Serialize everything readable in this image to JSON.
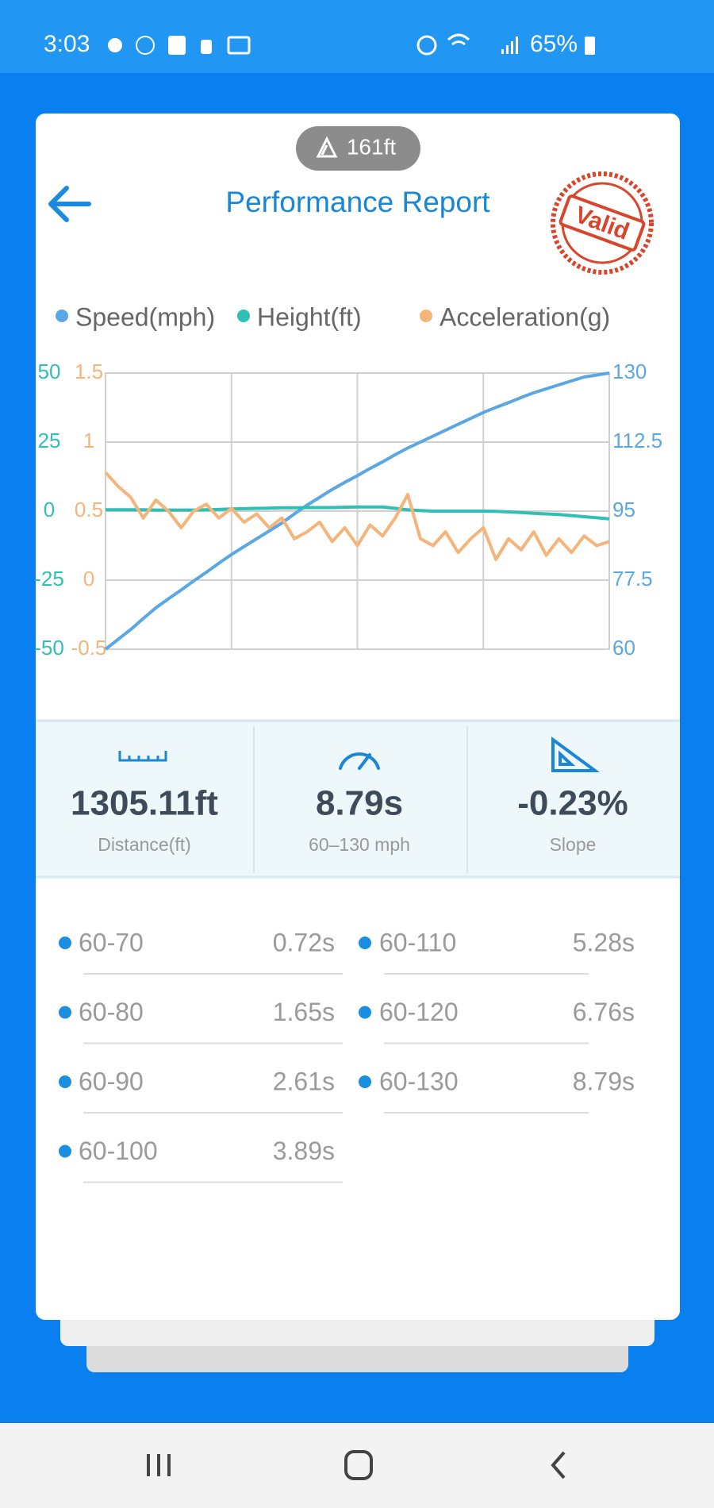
{
  "status_bar": {
    "time": "3:03",
    "battery": "65%"
  },
  "header": {
    "elevation": "161ft",
    "title": "Performance Report",
    "stamp": "Valid"
  },
  "chart_data": {
    "type": "line",
    "series": [
      {
        "name": "Speed(mph)",
        "color": "#5ba7e3",
        "axis": "y2",
        "values": [
          60,
          62.5,
          65,
          67.8,
          70.5,
          72.8,
          75,
          77.3,
          79.5,
          81.8,
          84,
          86,
          88,
          90,
          92,
          94.3,
          96.5,
          98.5,
          100.5,
          102.3,
          104,
          105.8,
          107.5,
          109.3,
          111,
          112.5,
          114,
          115.5,
          117,
          118.5,
          120,
          121.3,
          122.5,
          123.8,
          125,
          126,
          127,
          128,
          129,
          129.5,
          130
        ]
      },
      {
        "name": "Height(ft)",
        "color": "#2fbfb5",
        "axis": "y",
        "values": [
          0.5,
          0.5,
          0.5,
          0.5,
          0.4,
          0.4,
          0.4,
          0.4,
          0.5,
          0.6,
          0.8,
          0.9,
          1,
          1.1,
          1.2,
          1.2,
          1.3,
          1.3,
          1.3,
          1.4,
          1.5,
          1.5,
          1.5,
          1,
          0.5,
          0.2,
          0,
          0,
          0,
          0,
          0,
          -0.1,
          -0.3,
          -0.5,
          -0.8,
          -1,
          -1.2,
          -1.6,
          -2,
          -2.4,
          -2.8
        ]
      },
      {
        "name": "Acceleration(g)",
        "color": "#f5b47a",
        "axis": "y3",
        "values": [
          0.78,
          0.68,
          0.6,
          0.45,
          0.58,
          0.5,
          0.38,
          0.5,
          0.55,
          0.45,
          0.52,
          0.42,
          0.48,
          0.38,
          0.45,
          0.3,
          0.35,
          0.42,
          0.28,
          0.38,
          0.25,
          0.4,
          0.32,
          0.45,
          0.62,
          0.3,
          0.25,
          0.35,
          0.2,
          0.3,
          0.38,
          0.15,
          0.3,
          0.22,
          0.35,
          0.18,
          0.3,
          0.2,
          0.32,
          0.25,
          0.28
        ]
      }
    ],
    "ylim": [
      -50,
      50
    ],
    "yticks": [
      -50,
      -25,
      0,
      25,
      50
    ],
    "y2lim": [
      60,
      130
    ],
    "y2ticks": [
      60,
      77.5,
      95,
      112.5,
      130
    ],
    "y3lim": [
      -0.5,
      1.5
    ],
    "y3ticks": [
      -0.5,
      0,
      0.5,
      1,
      1.5
    ],
    "grid": true
  },
  "stats": [
    {
      "value": "1305.11ft",
      "label": "Distance(ft)"
    },
    {
      "value": "8.79s",
      "label": "60–130 mph"
    },
    {
      "value": "-0.23%",
      "label": "Slope"
    }
  ],
  "splits": [
    {
      "range": "60-70",
      "time": "0.72s"
    },
    {
      "range": "60-80",
      "time": "1.65s"
    },
    {
      "range": "60-90",
      "time": "2.61s"
    },
    {
      "range": "60-100",
      "time": "3.89s"
    },
    {
      "range": "60-110",
      "time": "5.28s"
    },
    {
      "range": "60-120",
      "time": "6.76s"
    },
    {
      "range": "60-130",
      "time": "8.79s"
    }
  ]
}
